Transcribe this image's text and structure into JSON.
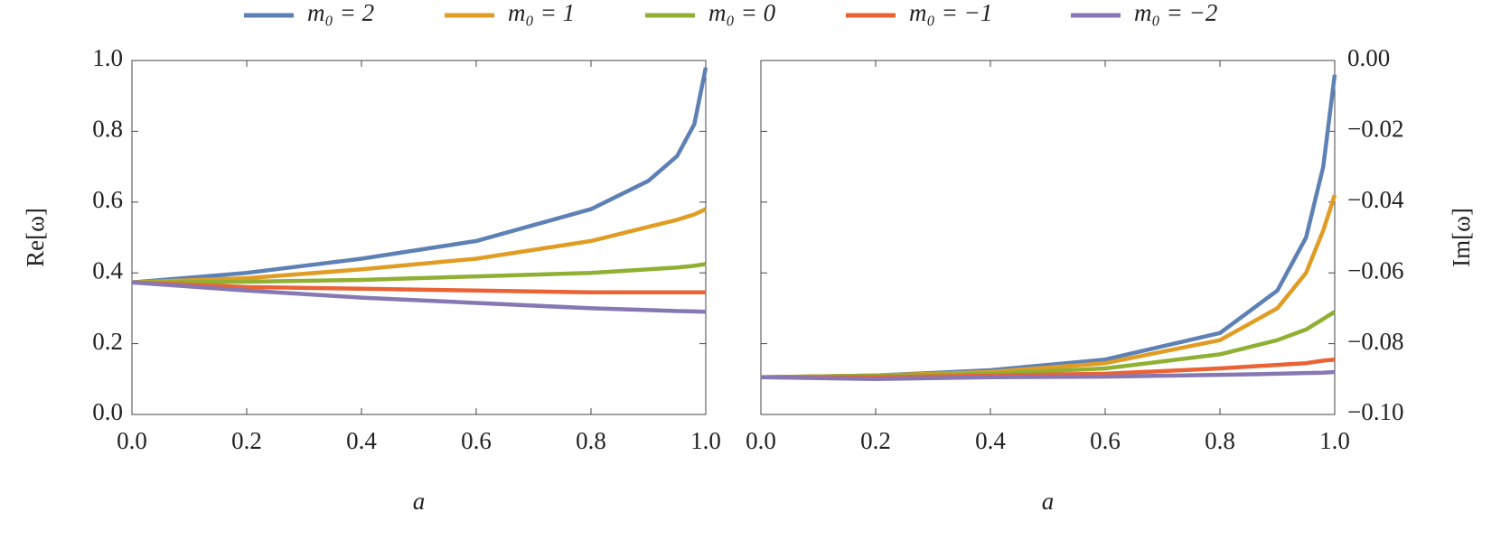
{
  "chart_data": [
    {
      "type": "line",
      "xlabel": "a",
      "ylabel": "Re[ω]",
      "x": [
        0,
        0.2,
        0.4,
        0.6,
        0.8,
        0.9,
        0.95,
        0.98,
        1.0
      ],
      "xlim": [
        0,
        1
      ],
      "ylim": [
        0,
        1
      ],
      "xticks": [
        {
          "value": 0,
          "label": "0.0"
        },
        {
          "value": 0.2,
          "label": "0.2"
        },
        {
          "value": 0.4,
          "label": "0.4"
        },
        {
          "value": 0.6,
          "label": "0.6"
        },
        {
          "value": 0.8,
          "label": "0.8"
        },
        {
          "value": 1,
          "label": "1.0"
        }
      ],
      "yticks": [
        {
          "value": 0,
          "label": "0.0"
        },
        {
          "value": 0.2,
          "label": "0.2"
        },
        {
          "value": 0.4,
          "label": "0.4"
        },
        {
          "value": 0.6,
          "label": "0.6"
        },
        {
          "value": 0.8,
          "label": "0.8"
        },
        {
          "value": 1,
          "label": "1.0"
        }
      ],
      "series": [
        {
          "name": "m₀ = 2",
          "color": "#5e81b5",
          "values": [
            0.373,
            0.4,
            0.44,
            0.49,
            0.58,
            0.66,
            0.73,
            0.82,
            0.98
          ]
        },
        {
          "name": "m₀ = 1",
          "color": "#e19c24",
          "values": [
            0.373,
            0.385,
            0.41,
            0.44,
            0.49,
            0.53,
            0.55,
            0.565,
            0.58
          ]
        },
        {
          "name": "m₀ = 0",
          "color": "#8fb032",
          "values": [
            0.373,
            0.375,
            0.38,
            0.39,
            0.4,
            0.41,
            0.415,
            0.42,
            0.425
          ]
        },
        {
          "name": "m₀ = −1",
          "color": "#eb6235",
          "values": [
            0.373,
            0.36,
            0.355,
            0.35,
            0.345,
            0.345,
            0.345,
            0.345,
            0.345
          ]
        },
        {
          "name": "m₀ = −2",
          "color": "#8778b3",
          "values": [
            0.373,
            0.35,
            0.33,
            0.315,
            0.3,
            0.295,
            0.292,
            0.291,
            0.29
          ]
        }
      ]
    },
    {
      "type": "line",
      "xlabel": "a",
      "ylabel": "Im[ω]",
      "x": [
        0,
        0.2,
        0.4,
        0.6,
        0.8,
        0.9,
        0.95,
        0.98,
        1.0
      ],
      "xlim": [
        0,
        1
      ],
      "ylim": [
        -0.1,
        0
      ],
      "xticks": [
        {
          "value": 0,
          "label": "0.0"
        },
        {
          "value": 0.2,
          "label": "0.2"
        },
        {
          "value": 0.4,
          "label": "0.4"
        },
        {
          "value": 0.6,
          "label": "0.6"
        },
        {
          "value": 0.8,
          "label": "0.8"
        },
        {
          "value": 1,
          "label": "1.0"
        }
      ],
      "yticks": [
        {
          "value": 0,
          "label": "0.00"
        },
        {
          "value": -0.02,
          "label": "−0.02"
        },
        {
          "value": -0.04,
          "label": "−0.04"
        },
        {
          "value": -0.06,
          "label": "−0.06"
        },
        {
          "value": -0.08,
          "label": "−0.08"
        },
        {
          "value": -0.1,
          "label": "−0.10"
        }
      ],
      "series": [
        {
          "name": "m₀ = 2",
          "color": "#5e81b5",
          "values": [
            -0.0895,
            -0.089,
            -0.0875,
            -0.0845,
            -0.077,
            -0.065,
            -0.05,
            -0.03,
            -0.004
          ]
        },
        {
          "name": "m₀ = 1",
          "color": "#e19c24",
          "values": [
            -0.0895,
            -0.089,
            -0.088,
            -0.0855,
            -0.079,
            -0.07,
            -0.06,
            -0.048,
            -0.038
          ]
        },
        {
          "name": "m₀ = 0",
          "color": "#8fb032",
          "values": [
            -0.0895,
            -0.089,
            -0.0885,
            -0.087,
            -0.083,
            -0.079,
            -0.076,
            -0.073,
            -0.071
          ]
        },
        {
          "name": "m₀ = −1",
          "color": "#eb6235",
          "values": [
            -0.0895,
            -0.0895,
            -0.089,
            -0.0885,
            -0.087,
            -0.086,
            -0.0855,
            -0.0848,
            -0.0845
          ]
        },
        {
          "name": "m₀ = −2",
          "color": "#8778b3",
          "values": [
            -0.0895,
            -0.09,
            -0.0895,
            -0.0893,
            -0.0888,
            -0.0885,
            -0.0883,
            -0.0882,
            -0.088
          ]
        }
      ]
    }
  ]
}
